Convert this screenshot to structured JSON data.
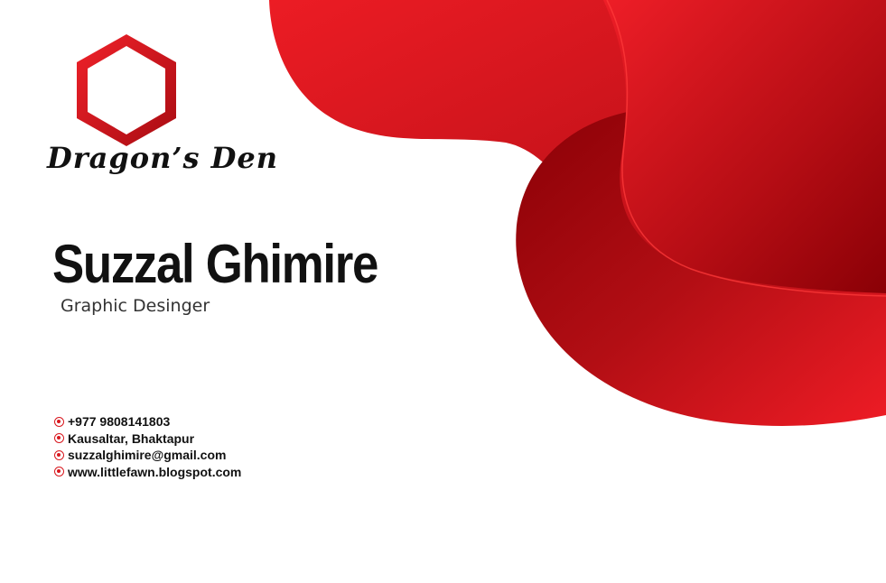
{
  "brand": {
    "name": "Dragon’s Den"
  },
  "person": {
    "name": "Suzzal Ghimire",
    "title": "Graphic Desinger"
  },
  "contacts": [
    {
      "icon": "bullet-icon",
      "text": "+977 9808141803"
    },
    {
      "icon": "bullet-icon",
      "text": "Kausaltar, Bhaktapur"
    },
    {
      "icon": "bullet-icon",
      "text": "suzzalghimire@gmail.com"
    },
    {
      "icon": "bullet-icon",
      "text": "www.littlefawn.blogspot.com"
    }
  ],
  "colors": {
    "accent": "#e41e26",
    "dark_red": "#8c0008",
    "text": "#111111"
  }
}
